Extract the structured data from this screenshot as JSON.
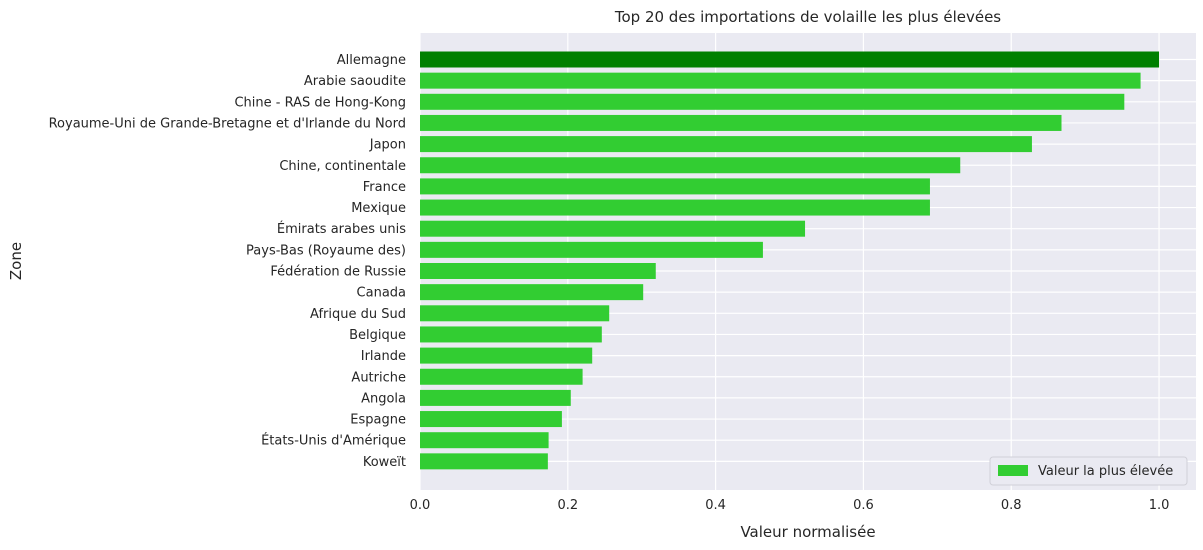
{
  "chart_data": {
    "type": "bar",
    "orientation": "horizontal",
    "title": "Top 20 des importations de volaille les plus élevées",
    "xlabel": "Valeur normalisée",
    "ylabel": "Zone",
    "xlim": [
      0,
      1.05
    ],
    "xticks": [
      "0.0",
      "0.2",
      "0.4",
      "0.6",
      "0.8",
      "1.0"
    ],
    "grid": true,
    "legend_position": "bottom-right",
    "categories": [
      "Allemagne",
      "Arabie saoudite",
      "Chine - RAS de Hong-Kong",
      "Royaume-Uni de Grande-Bretagne et d'Irlande du Nord",
      "Japon",
      "Chine, continentale",
      "France",
      "Mexique",
      "Émirats arabes unis",
      "Pays-Bas (Royaume des)",
      "Fédération de Russie",
      "Canada",
      "Afrique du Sud",
      "Belgique",
      "Irlande",
      "Autriche",
      "Angola",
      "Espagne",
      "États-Unis d'Amérique",
      "Koweït"
    ],
    "series": [
      {
        "name": "Valeur la plus élevée",
        "values": [
          1.0,
          0.975,
          0.953,
          0.868,
          0.828,
          0.731,
          0.69,
          0.69,
          0.521,
          0.464,
          0.319,
          0.302,
          0.256,
          0.246,
          0.233,
          0.22,
          0.204,
          0.192,
          0.174,
          0.173
        ]
      }
    ],
    "colors": {
      "highlight": "#008000",
      "bar": "#32cd32",
      "plot_background": "#eaeaf2",
      "grid": "#ffffff"
    }
  }
}
